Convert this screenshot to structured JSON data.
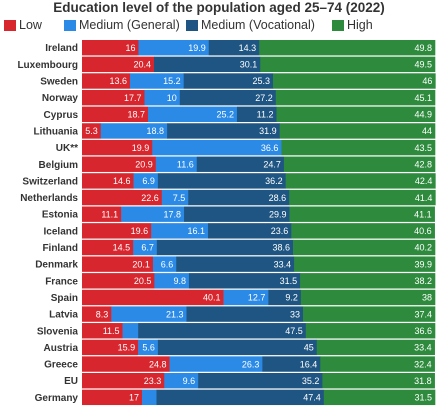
{
  "colors": {
    "low": "#d7262e",
    "medium_general": "#2b8ae6",
    "medium_vocational": "#1f5582",
    "high": "#2e8b3e"
  },
  "chart_data": {
    "type": "bar",
    "orientation": "horizontal",
    "stacked": true,
    "title": "Education level of the population aged 25–74 (2022)",
    "legend_position": "top",
    "xlim": [
      0,
      100
    ],
    "categories": [
      "Ireland",
      "Luxembourg",
      "Sweden",
      "Norway",
      "Cyprus",
      "Lithuania",
      "UK**",
      "Belgium",
      "Switzerland",
      "Netherlands",
      "Estonia",
      "Iceland",
      "Finland",
      "Denmark",
      "France",
      "Spain",
      "Latvia",
      "Slovenia",
      "Austria",
      "Greece",
      "EU",
      "Germany"
    ],
    "series": [
      {
        "name": "Low",
        "color": "#d7262e",
        "values": [
          16,
          20.4,
          13.6,
          17.7,
          18.7,
          5.3,
          19.9,
          20.9,
          14.6,
          22.6,
          11.1,
          19.6,
          14.5,
          20.1,
          20.5,
          40.1,
          8.3,
          11.5,
          15.9,
          24.8,
          23.3,
          17
        ],
        "labels": [
          "16",
          "20.4",
          "13.6",
          "17.7",
          "18.7",
          "5.3",
          "19.9",
          "20.9",
          "14.6",
          "22.6",
          "11.1",
          "19.6",
          "14.5",
          "20.1",
          "20.5",
          "40.1",
          "8.3",
          "11.5",
          "15.9",
          "24.8",
          "23.3",
          "17"
        ]
      },
      {
        "name": "Medium (General)",
        "color": "#2b8ae6",
        "values": [
          19.9,
          0,
          15.2,
          10,
          25.2,
          18.8,
          36.6,
          11.6,
          6.9,
          7.5,
          17.8,
          16.1,
          6.7,
          6.6,
          9.8,
          12.7,
          21.3,
          4.4,
          5.6,
          26.3,
          9.6,
          4.1
        ],
        "labels": [
          "19.9",
          "",
          "15.2",
          "10",
          "25.2",
          "18.8",
          "36.6",
          "11.6",
          "6.9",
          "7.5",
          "17.8",
          "16.1",
          "6.7",
          "6.6",
          "9.8",
          "12.7",
          "21.3",
          "",
          "5.6",
          "26.3",
          "9.6",
          ""
        ]
      },
      {
        "name": "Medium (Vocational)",
        "color": "#1f5582",
        "values": [
          14.3,
          30.1,
          25.3,
          27.2,
          11.2,
          31.9,
          0,
          24.7,
          36.2,
          28.6,
          29.9,
          23.6,
          38.6,
          33.4,
          31.5,
          9.2,
          33,
          47.5,
          45,
          16.4,
          35.2,
          47.4
        ],
        "labels": [
          "14.3",
          "30.1",
          "25.3",
          "27.2",
          "11.2",
          "31.9",
          "",
          "24.7",
          "36.2",
          "28.6",
          "29.9",
          "23.6",
          "38.6",
          "33.4",
          "31.5",
          "9.2",
          "33",
          "47.5",
          "45",
          "16.4",
          "35.2",
          "47.4"
        ]
      },
      {
        "name": "High",
        "color": "#2e8b3e",
        "values": [
          49.8,
          49.5,
          46,
          45.1,
          44.9,
          44,
          43.5,
          42.8,
          42.4,
          41.4,
          41.1,
          40.6,
          40.2,
          39.9,
          38.2,
          38,
          37.4,
          36.6,
          33.4,
          32.4,
          31.8,
          31.5
        ],
        "labels": [
          "49.8",
          "49.5",
          "46",
          "45.1",
          "44.9",
          "44",
          "43.5",
          "42.8",
          "42.4",
          "41.4",
          "41.1",
          "40.6",
          "40.2",
          "39.9",
          "38.2",
          "38",
          "37.4",
          "36.6",
          "33.4",
          "32.4",
          "31.8",
          "31.5"
        ]
      }
    ]
  }
}
